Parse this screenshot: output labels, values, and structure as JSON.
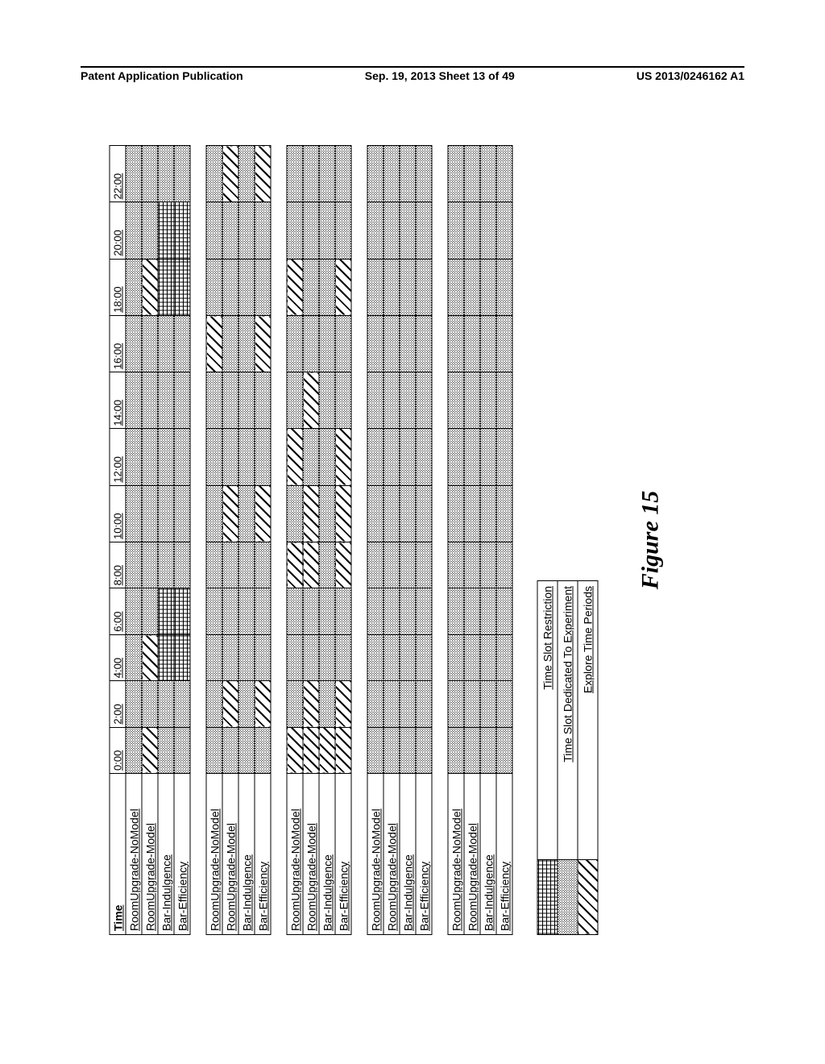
{
  "header": {
    "left": "Patent Application Publication",
    "center": "Sep. 19, 2013  Sheet 13 of 49",
    "right": "US 2013/0246162 A1"
  },
  "figure_caption": "Figure 15",
  "time_label": "Time",
  "time_headers": [
    "0:00",
    "2:00",
    "4:00",
    "6:00",
    "8:00",
    "10:00",
    "12:00",
    "14:00",
    "16:00",
    "18:00",
    "20:00",
    "22:00"
  ],
  "row_labels": [
    "RoomUpgrade-NoModel",
    "RoomUpgrade-Model",
    "Bar-Indulgence",
    "Bar-Efficiency"
  ],
  "legend": {
    "restriction": "Time Slot Restriction",
    "experiment": "Time Slot Dedicated To Experiment",
    "explore": "Explore Time Periods"
  },
  "groups": [
    {
      "rows": [
        [
          "dense",
          "dense",
          "dense",
          "dense",
          "dense",
          "dense",
          "dense",
          "dense",
          "dense",
          "dense",
          "dense",
          "dense"
        ],
        [
          "diag",
          "dense",
          "diag",
          "dense",
          "dense",
          "dense",
          "dense",
          "dense",
          "dense",
          "diag",
          "dense",
          "dense"
        ],
        [
          "dense",
          "dense",
          "grid",
          "grid",
          "dense",
          "dense",
          "dense",
          "dense",
          "dense",
          "grid",
          "grid",
          "dense"
        ],
        [
          "dense",
          "dense",
          "grid",
          "grid",
          "dense",
          "dense",
          "dense",
          "dense",
          "dense",
          "grid",
          "grid",
          "dense"
        ]
      ]
    },
    {
      "rows": [
        [
          "dense",
          "dense",
          "dense",
          "dense",
          "dense",
          "dense",
          "dense",
          "dense",
          "diag",
          "dense",
          "dense",
          "dense"
        ],
        [
          "dense",
          "diag",
          "dense",
          "dense",
          "dense",
          "diag",
          "dense",
          "dense",
          "dense",
          "dense",
          "dense",
          "diag"
        ],
        [
          "dense",
          "dense",
          "dense",
          "dense",
          "dense",
          "dense",
          "dense",
          "dense",
          "dense",
          "dense",
          "dense",
          "dense"
        ],
        [
          "dense",
          "diag",
          "dense",
          "dense",
          "dense",
          "diag",
          "dense",
          "dense",
          "diag",
          "dense",
          "dense",
          "diag"
        ]
      ]
    },
    {
      "rows": [
        [
          "diag",
          "dense",
          "dense",
          "dense",
          "diag",
          "dense",
          "diag",
          "dense",
          "dense",
          "diag",
          "dense",
          "dense"
        ],
        [
          "diag",
          "diag",
          "dense",
          "dense",
          "diag",
          "diag",
          "dense",
          "diag",
          "dense",
          "dense",
          "dense",
          "dense"
        ],
        [
          "diag",
          "dense",
          "dense",
          "dense",
          "dense",
          "dense",
          "dense",
          "dense",
          "dense",
          "dense",
          "dense",
          "dense"
        ],
        [
          "diag",
          "diag",
          "dense",
          "dense",
          "diag",
          "diag",
          "diag",
          "dense",
          "dense",
          "diag",
          "dense",
          "dense"
        ]
      ]
    },
    {
      "rows": [
        [
          "dense",
          "dense",
          "dense",
          "dense",
          "dense",
          "dense",
          "dense",
          "dense",
          "dense",
          "dense",
          "dense",
          "dense"
        ],
        [
          "dense",
          "dense",
          "dense",
          "dense",
          "dense",
          "dense",
          "dense",
          "dense",
          "dense",
          "dense",
          "dense",
          "dense"
        ],
        [
          "dense",
          "dense",
          "dense",
          "dense",
          "dense",
          "dense",
          "dense",
          "dense",
          "dense",
          "dense",
          "dense",
          "dense"
        ],
        [
          "dense",
          "dense",
          "dense",
          "dense",
          "dense",
          "dense",
          "dense",
          "dense",
          "dense",
          "dense",
          "dense",
          "dense"
        ]
      ]
    },
    {
      "rows": [
        [
          "dense",
          "dense",
          "dense",
          "dense",
          "dense",
          "dense",
          "dense",
          "dense",
          "dense",
          "dense",
          "dense",
          "dense"
        ],
        [
          "dense",
          "dense",
          "dense",
          "dense",
          "dense",
          "dense",
          "dense",
          "dense",
          "dense",
          "dense",
          "dense",
          "dense"
        ],
        [
          "dense",
          "dense",
          "dense",
          "dense",
          "dense",
          "dense",
          "dense",
          "dense",
          "dense",
          "dense",
          "dense",
          "dense"
        ],
        [
          "dense",
          "dense",
          "dense",
          "dense",
          "dense",
          "dense",
          "dense",
          "dense",
          "dense",
          "dense",
          "dense",
          "dense"
        ]
      ]
    }
  ]
}
